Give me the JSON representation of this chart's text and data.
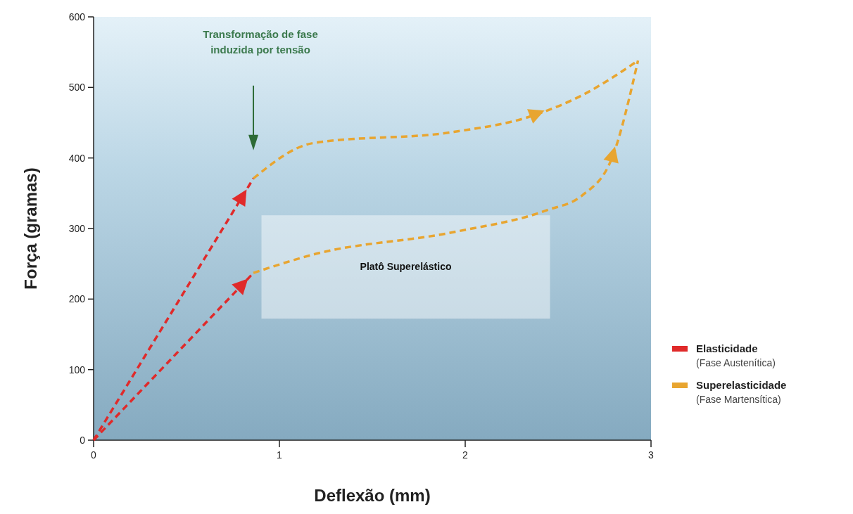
{
  "chart_data": {
    "type": "line",
    "xlabel": "Deflexão (mm)",
    "ylabel": "Força (gramas)",
    "xlim": [
      0,
      3
    ],
    "xticks": [
      0,
      1,
      2,
      3
    ],
    "ylim": [
      0,
      600
    ],
    "yticks": [
      0,
      100,
      200,
      300,
      400,
      500,
      600
    ],
    "grid": false,
    "legend": "bottom right",
    "line_style": "dashed",
    "marker": "none",
    "series": [
      {
        "name": "Elasticidade\n(Fase Austenítica)",
        "color": "#e02a2a",
        "x": [
          0,
          0.86
        ],
        "values": [
          0,
          371
        ]
      },
      {
        "name": "Superelasticidade\n(Fase Martensítica)",
        "color": "#e8a530",
        "x": [
          0.86,
          1.18,
          1.94,
          2.34,
          2.63,
          2.93
        ],
        "values": [
          371,
          421,
          437,
          458,
          489,
          538
        ]
      },
      {
        "color": "#e8a530",
        "x": [
          0.86,
          1.18,
          1.94,
          2.44,
          2.63,
          2.79,
          2.93
        ],
        "values": [
          237,
          263,
          295,
          326,
          347,
          400,
          538
        ]
      },
      {
        "color": "#e02a2a",
        "x": [
          0,
          0.86
        ],
        "values": [
          0,
          237
        ]
      }
    ],
    "annotations": [
      "Transformação de fase\ninduzida por tensão",
      "Platô Superelástico"
    ]
  }
}
